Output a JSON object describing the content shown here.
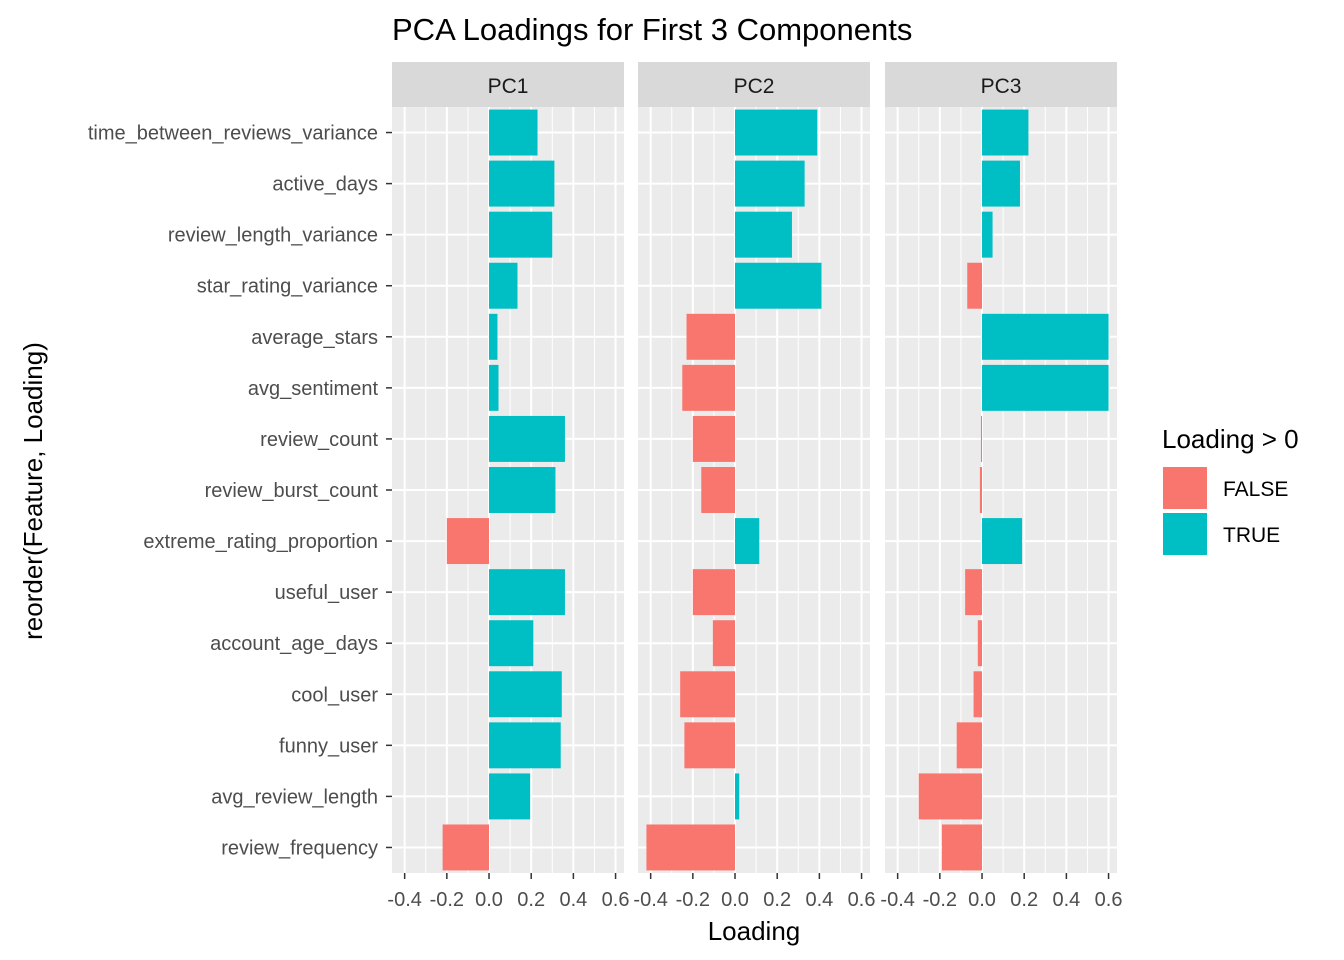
{
  "chart_data": {
    "type": "bar",
    "orientation": "horizontal",
    "title": "PCA Loadings for First 3 Components",
    "xlabel": "Loading",
    "ylabel": "reorder(Feature, Loading)",
    "facets": [
      "PC1",
      "PC2",
      "PC3"
    ],
    "xlim": [
      -0.46,
      0.64
    ],
    "x_ticks": [
      -0.4,
      -0.2,
      0.0,
      0.2,
      0.4,
      0.6
    ],
    "x_tick_labels": [
      "-0.4",
      "-0.2",
      "0.0",
      "0.2",
      "0.4",
      "0.6"
    ],
    "features": [
      "time_between_reviews_variance",
      "active_days",
      "review_length_variance",
      "star_rating_variance",
      "average_stars",
      "avg_sentiment",
      "review_count",
      "review_burst_count",
      "extreme_rating_proportion",
      "useful_user",
      "account_age_days",
      "cool_user",
      "funny_user",
      "avg_review_length",
      "review_frequency"
    ],
    "series": [
      {
        "name": "PC1",
        "values": [
          0.23,
          0.31,
          0.3,
          0.135,
          0.04,
          0.045,
          0.36,
          0.315,
          -0.2,
          0.36,
          0.21,
          0.345,
          0.34,
          0.195,
          -0.22
        ]
      },
      {
        "name": "PC2",
        "values": [
          0.39,
          0.33,
          0.27,
          0.41,
          -0.23,
          -0.25,
          -0.2,
          -0.16,
          0.115,
          -0.2,
          -0.105,
          -0.26,
          -0.24,
          0.02,
          -0.42
        ]
      },
      {
        "name": "PC3",
        "values": [
          0.22,
          0.18,
          0.05,
          -0.07,
          0.6,
          0.6,
          -0.005,
          -0.01,
          0.19,
          -0.08,
          -0.02,
          -0.04,
          -0.12,
          -0.3,
          -0.19
        ]
      }
    ],
    "legend": {
      "title": "Loading > 0",
      "position": "right",
      "entries": [
        {
          "label": "FALSE",
          "color": "#F8766D"
        },
        {
          "label": "TRUE",
          "color": "#00BFC4"
        }
      ]
    },
    "colors": {
      "negative": "#F8766D",
      "positive": "#00BFC4",
      "panel_background": "#EBEBEB",
      "strip_background": "#D9D9D9",
      "gridline": "#FFFFFF"
    },
    "grid": true
  }
}
